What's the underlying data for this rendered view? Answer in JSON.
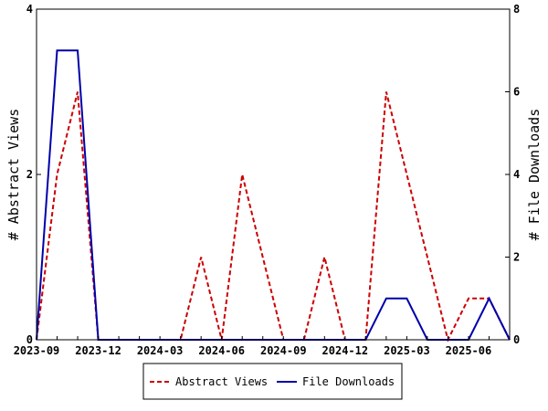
{
  "chart_data": {
    "type": "line",
    "title": "",
    "y_left_label": "# Abstract Views",
    "y_right_label": "# File Downloads",
    "y_left_lim": [
      0,
      4
    ],
    "y_right_lim": [
      0,
      8
    ],
    "y_left_ticks": [
      "0",
      "2",
      "4"
    ],
    "y_right_ticks": [
      "0",
      "2",
      "4",
      "6",
      "8"
    ],
    "x_tick_labels": [
      "2023-09",
      "2023-12",
      "2024-03",
      "2024-06",
      "2024-09",
      "2024-12",
      "2025-03",
      "2025-06"
    ],
    "x": [
      "2023-09",
      "2023-10",
      "2023-11",
      "2023-12",
      "2024-01",
      "2024-02",
      "2024-03",
      "2024-04",
      "2024-05",
      "2024-06",
      "2024-07",
      "2024-08",
      "2024-09",
      "2024-10",
      "2024-11",
      "2024-12",
      "2025-01",
      "2025-02",
      "2025-03",
      "2025-04",
      "2025-05",
      "2025-06",
      "2025-07",
      "2025-08"
    ],
    "series": [
      {
        "name": "Abstract Views",
        "axis": "left",
        "color": "#cc0000",
        "style": "dashed",
        "values": [
          0,
          2,
          3,
          0,
          0,
          0,
          0,
          0,
          1,
          0,
          2,
          1,
          0,
          0,
          1,
          0,
          0,
          3,
          2,
          1,
          0,
          0.5,
          0.5,
          0
        ]
      },
      {
        "name": "File Downloads",
        "axis": "right",
        "color": "#0000aa",
        "style": "solid",
        "values": [
          0,
          7,
          7,
          0,
          0,
          0,
          0,
          0,
          0,
          0,
          0,
          0,
          0,
          0,
          0,
          0,
          0,
          1,
          1,
          0,
          0,
          0,
          1,
          0
        ]
      }
    ],
    "legend": "bottom",
    "grid": false
  }
}
